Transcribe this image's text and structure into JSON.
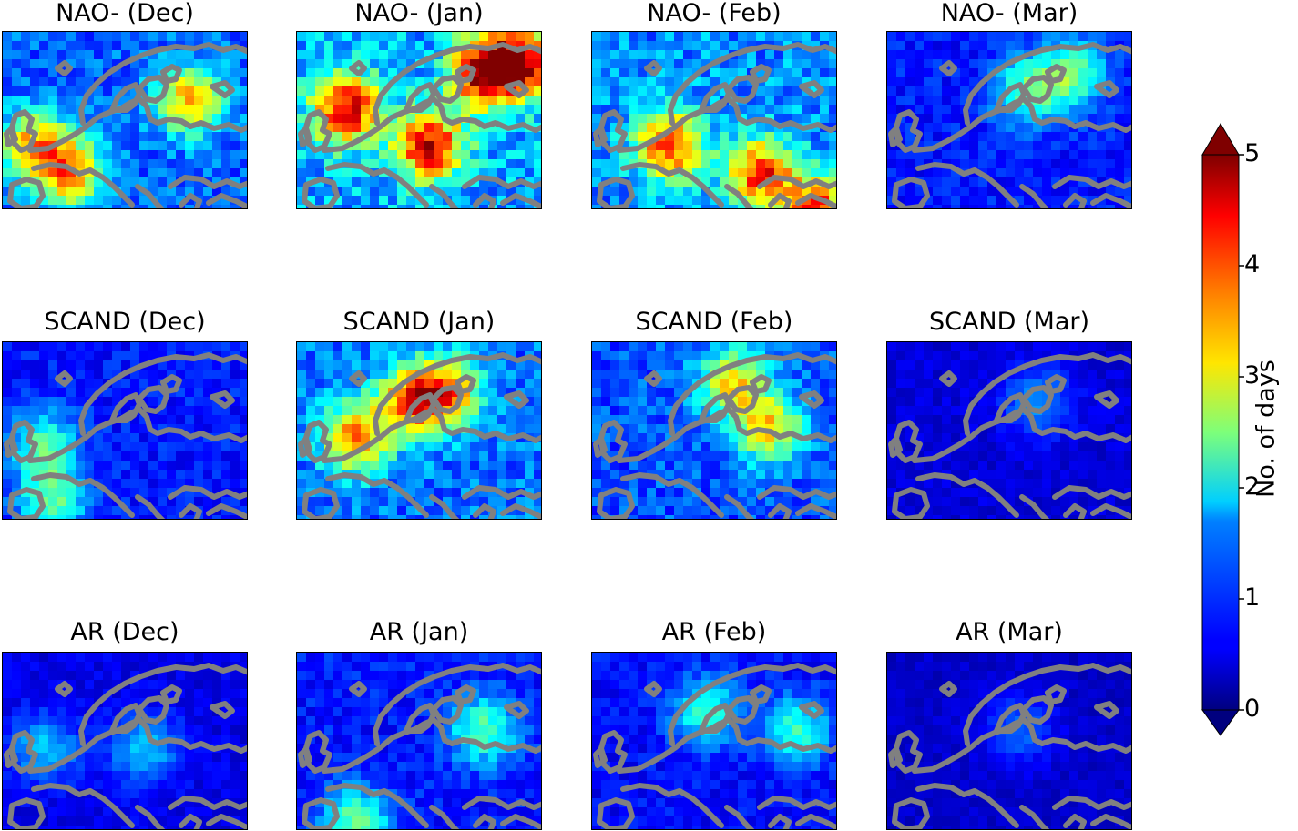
{
  "chart_data": {
    "type": "heatmap",
    "colormap": "jet",
    "colorbar": {
      "label": "No. of days",
      "min": 0,
      "max": 5,
      "ticks": [
        "0",
        "1",
        "2",
        "3",
        "4",
        "5"
      ],
      "extend": "both"
    },
    "coastline_color": "#808080",
    "panels": [
      {
        "title": "NAO- (Dec)",
        "row": 0,
        "col": 0,
        "mean_level": 1.5
      },
      {
        "title": "NAO- (Jan)",
        "row": 0,
        "col": 1,
        "mean_level": 2.0
      },
      {
        "title": "NAO- (Feb)",
        "row": 0,
        "col": 2,
        "mean_level": 1.8
      },
      {
        "title": "NAO- (Mar)",
        "row": 0,
        "col": 3,
        "mean_level": 1.0
      },
      {
        "title": "SCAND (Dec)",
        "row": 1,
        "col": 0,
        "mean_level": 1.0
      },
      {
        "title": "SCAND (Jan)",
        "row": 1,
        "col": 1,
        "mean_level": 1.6
      },
      {
        "title": "SCAND (Feb)",
        "row": 1,
        "col": 2,
        "mean_level": 1.4
      },
      {
        "title": "SCAND (Mar)",
        "row": 1,
        "col": 3,
        "mean_level": 0.6
      },
      {
        "title": "AR (Dec)",
        "row": 2,
        "col": 0,
        "mean_level": 0.7
      },
      {
        "title": "AR (Jan)",
        "row": 2,
        "col": 1,
        "mean_level": 1.0
      },
      {
        "title": "AR (Feb)",
        "row": 2,
        "col": 2,
        "mean_level": 0.9
      },
      {
        "title": "AR (Mar)",
        "row": 2,
        "col": 3,
        "mean_level": 0.5
      }
    ]
  }
}
